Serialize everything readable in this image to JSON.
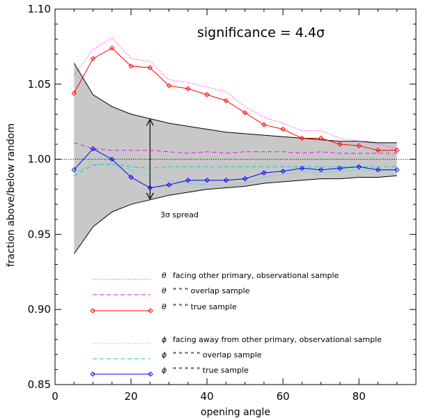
{
  "chart_data": {
    "type": "line",
    "xlabel": "opening angle",
    "ylabel": "fraction above/below random",
    "xlim": [
      0,
      95
    ],
    "ylim": [
      0.85,
      1.1
    ],
    "xticks": [
      "0",
      "20",
      "40",
      "60",
      "80"
    ],
    "yticks": [
      "0.85",
      "0.90",
      "0.95",
      "1.00",
      "1.05",
      "1.10"
    ],
    "annotation_significance": "significance = 4.4σ",
    "annotation_spread": "3σ spread",
    "x": [
      5,
      10,
      15,
      20,
      25,
      30,
      35,
      40,
      45,
      50,
      55,
      60,
      65,
      70,
      75,
      80,
      85,
      90
    ],
    "band_upper": [
      1.064,
      1.043,
      1.035,
      1.03,
      1.027,
      1.024,
      1.022,
      1.02,
      1.018,
      1.017,
      1.016,
      1.015,
      1.014,
      1.013,
      1.012,
      1.012,
      1.011,
      1.011
    ],
    "band_lower": [
      0.937,
      0.955,
      0.965,
      0.97,
      0.973,
      0.976,
      0.978,
      0.98,
      0.981,
      0.982,
      0.984,
      0.985,
      0.986,
      0.987,
      0.987,
      0.988,
      0.988,
      0.989
    ],
    "spread_arrow_x": 25,
    "series": [
      {
        "style": "dotted",
        "color": "#ff00ff",
        "markers": false,
        "values": [
          1.056,
          1.073,
          1.081,
          1.067,
          1.065,
          1.053,
          1.051,
          1.048,
          1.045,
          1.035,
          1.028,
          1.024,
          1.019,
          1.019,
          1.014,
          1.012,
          1.01,
          1.007
        ]
      },
      {
        "style": "dashed",
        "color": "#ff00ff",
        "markers": false,
        "values": [
          1.011,
          1.007,
          1.006,
          1.006,
          1.006,
          1.005,
          1.004,
          1.005,
          1.004,
          1.005,
          1.005,
          1.005,
          1.004,
          1.005,
          1.004,
          1.004,
          1.004,
          1.004
        ]
      },
      {
        "style": "solid",
        "color": "#ff0000",
        "markers": true,
        "values": [
          1.044,
          1.067,
          1.074,
          1.062,
          1.061,
          1.049,
          1.047,
          1.043,
          1.039,
          1.031,
          1.023,
          1.02,
          1.014,
          1.014,
          1.01,
          1.009,
          1.006,
          1.006
        ]
      },
      {
        "style": "dotted",
        "color": "#00dddd",
        "markers": false,
        "values": [
          0.991,
          0.997,
          0.996,
          0.993,
          0.989,
          0.986,
          0.984,
          0.983,
          0.982,
          0.984,
          0.988,
          0.99,
          0.992,
          0.991,
          0.992,
          0.993,
          0.992,
          0.993
        ]
      },
      {
        "style": "dashed",
        "color": "#00cccc",
        "markers": false,
        "values": [
          0.989,
          0.996,
          0.997,
          0.995,
          0.994,
          0.995,
          0.995,
          0.995,
          0.995,
          0.995,
          0.995,
          0.995,
          0.995,
          0.995,
          0.995,
          0.995,
          0.995,
          0.995
        ]
      },
      {
        "style": "solid",
        "color": "#0000ff",
        "markers": true,
        "values": [
          0.993,
          1.007,
          1.0,
          0.988,
          0.981,
          0.983,
          0.986,
          0.986,
          0.986,
          0.987,
          0.991,
          0.992,
          0.994,
          0.993,
          0.994,
          0.995,
          0.993,
          0.993
        ]
      }
    ],
    "legend": [
      {
        "symbol": "θ",
        "text": "facing other primary, observational sample"
      },
      {
        "symbol": "θ",
        "text": "\"      \"      \"      overlap sample"
      },
      {
        "symbol": "θ",
        "text": "\"      \"      \"      true sample"
      },
      {
        "symbol": "ϕ",
        "text": "facing away from other primary, observational sample"
      },
      {
        "symbol": "ϕ",
        "text": "\"     \"     \"     \"     \"     overlap sample"
      },
      {
        "symbol": "ϕ",
        "text": "\"     \"     \"     \"     \"     true sample"
      }
    ]
  }
}
